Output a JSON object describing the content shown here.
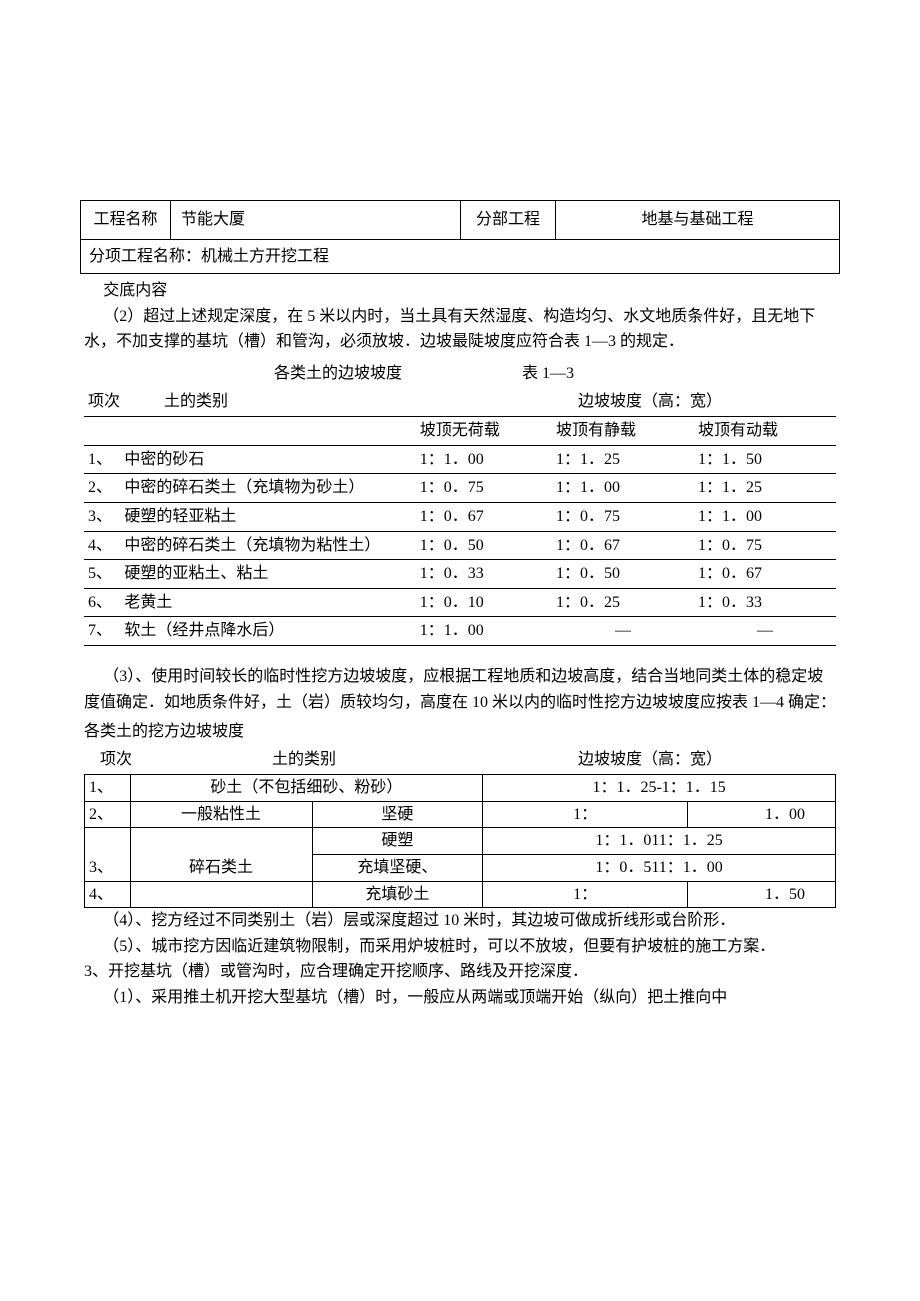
{
  "header": {
    "project_name_label": "工程名称",
    "project_name": "节能大厦",
    "subproject_label": "分部工程",
    "subproject_name": "地基与基础工程",
    "item_label": "分项工程名称：机械土方开挖工程"
  },
  "content": {
    "intro_label": "交底内容",
    "para2": "（2）超过上述规定深度，在 5 米以内时，当土具有天然湿度、构造均匀、水文地质条件好，且无地下水，不加支撑的基坑（槽）和管沟，必须放坡．边坡最陡坡度应符合表 1—3 的规定．"
  },
  "table13": {
    "title": "各类土的边坡坡度",
    "table_number": "表 1—3",
    "col_item": "项次",
    "col_category": "土的类别",
    "col_slope": "边坡坡度（高：宽）",
    "sub1": "坡顶无荷载",
    "sub2": "坡顶有静载",
    "sub3": "坡顶有动载",
    "rows": [
      {
        "idx": "1、",
        "soil": "中密的砂石",
        "v1": "1：1．00",
        "v2": "1：1．25",
        "v3": "1：1．50"
      },
      {
        "idx": "2、",
        "soil": "中密的碎石类土（充填物为砂土）",
        "v1": "1：0．75",
        "v2": "1：1．00",
        "v3": "1：1．25"
      },
      {
        "idx": "3、",
        "soil": "硬塑的轻亚粘土",
        "v1": "1：0．67",
        "v2": "1：0．75",
        "v3": "1：1．00"
      },
      {
        "idx": "4、",
        "soil": "中密的碎石类土（充填物为粘性土）",
        "v1": "1：0．50",
        "v2": "1：0．67",
        "v3": "1：0．75"
      },
      {
        "idx": "5、",
        "soil": "硬塑的亚粘土、粘土",
        "v1": "1：0．33",
        "v2": "1：0．50",
        "v3": "1：0．67"
      },
      {
        "idx": "6、",
        "soil": "老黄土",
        "v1": "1：0．10",
        "v2": "1：0．25",
        "v3": "1：0．33"
      },
      {
        "idx": "7、",
        "soil": "软土（经井点降水后）",
        "v1": "1：1．00",
        "v2": "—",
        "v3": "—"
      }
    ]
  },
  "para3": "（3）、使用时间较长的临时性挖方边坡坡度，应根据工程地质和边坡高度，结合当地同类土体的稳定坡度值确定．如地质条件好，土（岩）质较均匀，高度在 10 米以内的临时性挖方边坡坡度应按表 1—4 确定：",
  "table14": {
    "title": "各类土的挖方边坡坡度",
    "col_item": "项次",
    "col_category": "土的类别",
    "col_slope": "边坡坡度（高：宽）",
    "r1": {
      "idx": "1、",
      "soil": "砂土（不包括细砂、粉砂）",
      "val": "1：1．25-1：1．15"
    },
    "r2": {
      "idx": "2、",
      "soil1": "一般粘性土",
      "soil2": "坚硬",
      "v1": "1：",
      "v2": "1．00"
    },
    "r3": {
      "idx": "",
      "soil2": "硬塑",
      "val": "1：1．011：1．25"
    },
    "r4": {
      "idx": "3、",
      "soil1": "碎石类土",
      "soil2": "充填坚硬、",
      "val": "1：0．511：1．00"
    },
    "r5": {
      "idx": "4、",
      "soil2": "充填砂土",
      "v1": "1：",
      "v2": "1．50"
    }
  },
  "para4": "（4）、挖方经过不同类别土（岩）层或深度超过 10 米时，其边坡可做成折线形或台阶形．",
  "para5": "（5）、城市挖方因临近建筑物限制，而采用炉坡桩时，可以不放坡，但要有护坡桩的施工方案．",
  "para6": "3、开挖基坑（槽）或管沟时，应合理确定开挖顺序、路线及开挖深度．",
  "para7": "（1）、采用推土机开挖大型基坑（槽）时，一般应从两端或顶端开始（纵向）把土推向中"
}
